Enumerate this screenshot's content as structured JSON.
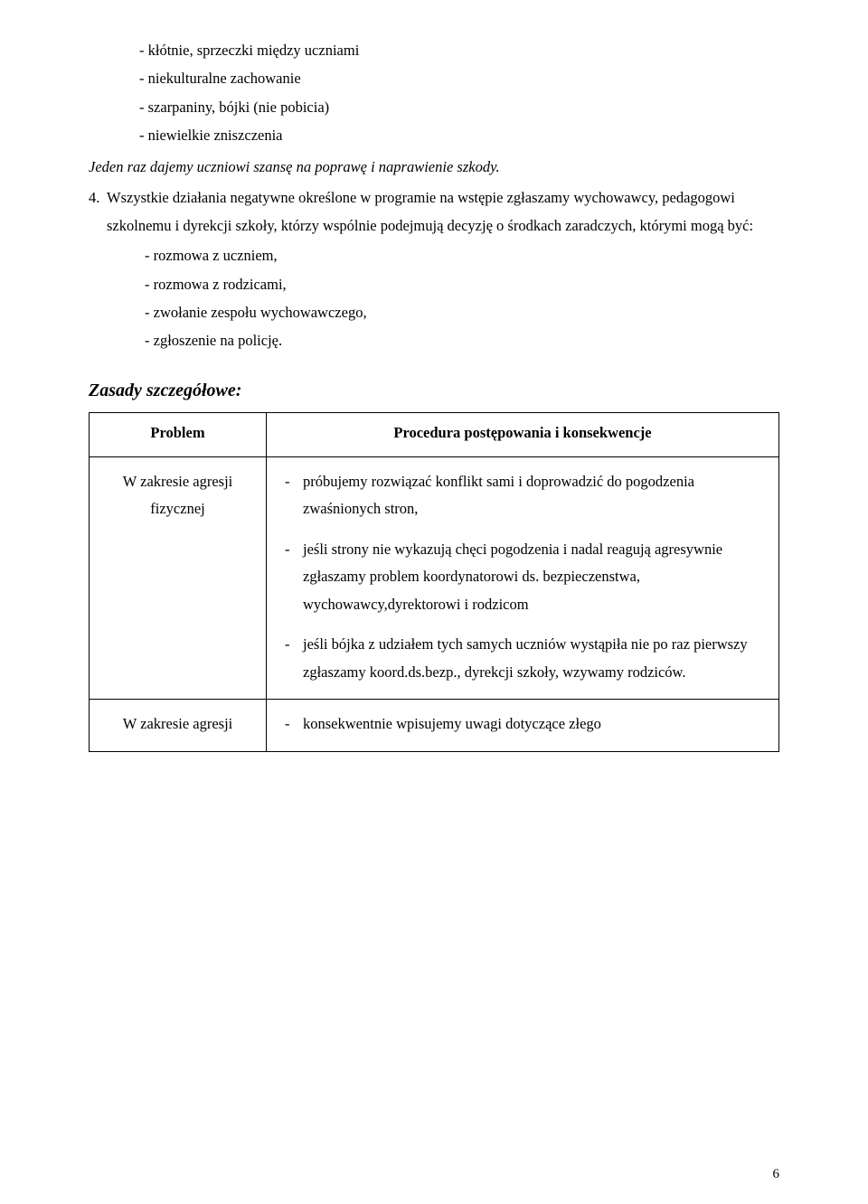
{
  "top_bullets": [
    "- kłótnie, sprzeczki między uczniami",
    "- niekulturalne zachowanie",
    "- szarpaniny, bójki (nie pobicia)",
    "- niewielkie zniszczenia"
  ],
  "italic_line": "Jeden raz dajemy uczniowi szansę na poprawę i naprawienie szkody.",
  "numbered": {
    "num": "4.",
    "text": "Wszystkie działania negatywne określone w programie na wstępie zgłaszamy wychowawcy, pedagogowi szkolnemu i dyrekcji szkoły, którzy wspólnie podejmują decyzję o środkach zaradczych, którymi mogą być:"
  },
  "sub_bullets": [
    "- rozmowa z uczniem,",
    "- rozmowa z rodzicami,",
    "- zwołanie zespołu wychowawczego,",
    "- zgłoszenie na policję."
  ],
  "section_title": "Zasady szczegółowe:",
  "table": {
    "headers": {
      "col1": "Problem",
      "col2": "Procedura postępowania i konsekwencje"
    },
    "rows": [
      {
        "label": "W zakresie agresji fizycznej",
        "items": [
          "próbujemy rozwiązać konflikt sami i doprowadzić do pogodzenia zwaśnionych stron,",
          "jeśli strony nie wykazują chęci pogodzenia i nadal reagują agresywnie zgłaszamy problem koordynatorowi ds. bezpieczenstwa, wychowawcy,dyrektorowi i rodzicom",
          "jeśli bójka z udziałem tych samych uczniów wystąpiła nie po raz pierwszy zgłaszamy koord.ds.bezp., dyrekcji szkoły, wzywamy rodziców."
        ]
      },
      {
        "label": "W zakresie agresji",
        "items": [
          "konsekwentnie wpisujemy uwagi dotyczące złego"
        ]
      }
    ]
  },
  "page_number": "6"
}
